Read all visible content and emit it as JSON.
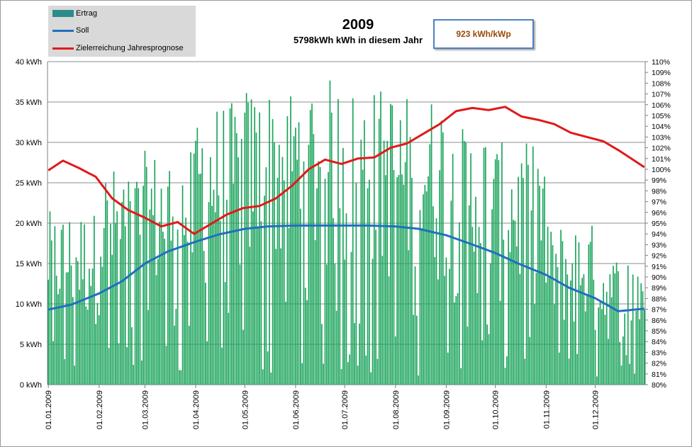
{
  "chart_data": {
    "type": "bar+line",
    "title": "2009",
    "subtitle": "5798kWh  kWh in diesem Jahr",
    "annotation_box": "923 kWh/kWp",
    "legend": [
      "Ertrag",
      "Soll",
      "Zielerreichung Jahresprognose"
    ],
    "legend_position": "top-left",
    "grid": true,
    "y_left": {
      "lim": [
        0,
        40
      ],
      "ticks": [
        "0 kWh",
        "5 kWh",
        "10 kWh",
        "15 kWh",
        "20 kWh",
        "25 kWh",
        "30 kWh",
        "35 kWh",
        "40 kWh"
      ]
    },
    "y_right": {
      "lim": [
        80,
        110
      ],
      "ticks": [
        "80%",
        "81%",
        "82%",
        "83%",
        "84%",
        "85%",
        "86%",
        "87%",
        "88%",
        "89%",
        "90%",
        "91%",
        "92%",
        "93%",
        "94%",
        "95%",
        "96%",
        "97%",
        "98%",
        "99%",
        "100%",
        "101%",
        "102%",
        "103%",
        "104%",
        "105%",
        "106%",
        "107%",
        "108%",
        "109%",
        "110%"
      ]
    },
    "x_ticks": [
      "01.01.2009",
      "01.02.2009",
      "01.03.2009",
      "01.04.2009",
      "01.05.2009",
      "01.06.2009",
      "01.07.2009",
      "01.08.2009",
      "01.09.2009",
      "01.10.2009",
      "01.11.2009",
      "01.12.2009"
    ],
    "ertrag_monthly_peak_kwh": [
      21.5,
      27,
      29,
      35,
      37,
      38,
      37,
      36,
      32,
      30,
      20,
      16
    ],
    "series": [
      {
        "name": "Soll",
        "axis": "left",
        "color": "#1f6fbf",
        "day": [
          1,
          15,
          32,
          46,
          60,
          74,
          91,
          105,
          121,
          135,
          152,
          166,
          182,
          196,
          213,
          227,
          244,
          258,
          274,
          288,
          305,
          319,
          335,
          349,
          365
        ],
        "values": [
          9.3,
          9.9,
          11.3,
          12.8,
          15.0,
          16.5,
          17.7,
          18.6,
          19.3,
          19.6,
          19.7,
          19.7,
          19.7,
          19.7,
          19.6,
          19.3,
          18.5,
          17.5,
          16.3,
          15.0,
          13.6,
          12.0,
          10.7,
          9.1,
          9.4
        ]
      },
      {
        "name": "Zielerreichung Jahresprognose",
        "axis": "right",
        "color": "#e0191b",
        "day": [
          1,
          10,
          20,
          30,
          40,
          50,
          60,
          70,
          80,
          90,
          100,
          110,
          120,
          130,
          140,
          150,
          160,
          170,
          180,
          190,
          200,
          210,
          220,
          230,
          240,
          250,
          260,
          270,
          280,
          290,
          300,
          310,
          320,
          330,
          340,
          350,
          365
        ],
        "values": [
          99.9,
          100.8,
          100.1,
          99.3,
          97.3,
          96.2,
          95.5,
          94.7,
          95.1,
          94.0,
          94.9,
          95.8,
          96.4,
          96.6,
          97.3,
          98.5,
          100.0,
          100.9,
          100.5,
          101.0,
          101.1,
          102.0,
          102.4,
          103.3,
          104.2,
          105.4,
          105.7,
          105.5,
          105.8,
          104.9,
          104.6,
          104.2,
          103.4,
          103.0,
          102.6,
          101.7,
          100.2
        ]
      }
    ]
  }
}
